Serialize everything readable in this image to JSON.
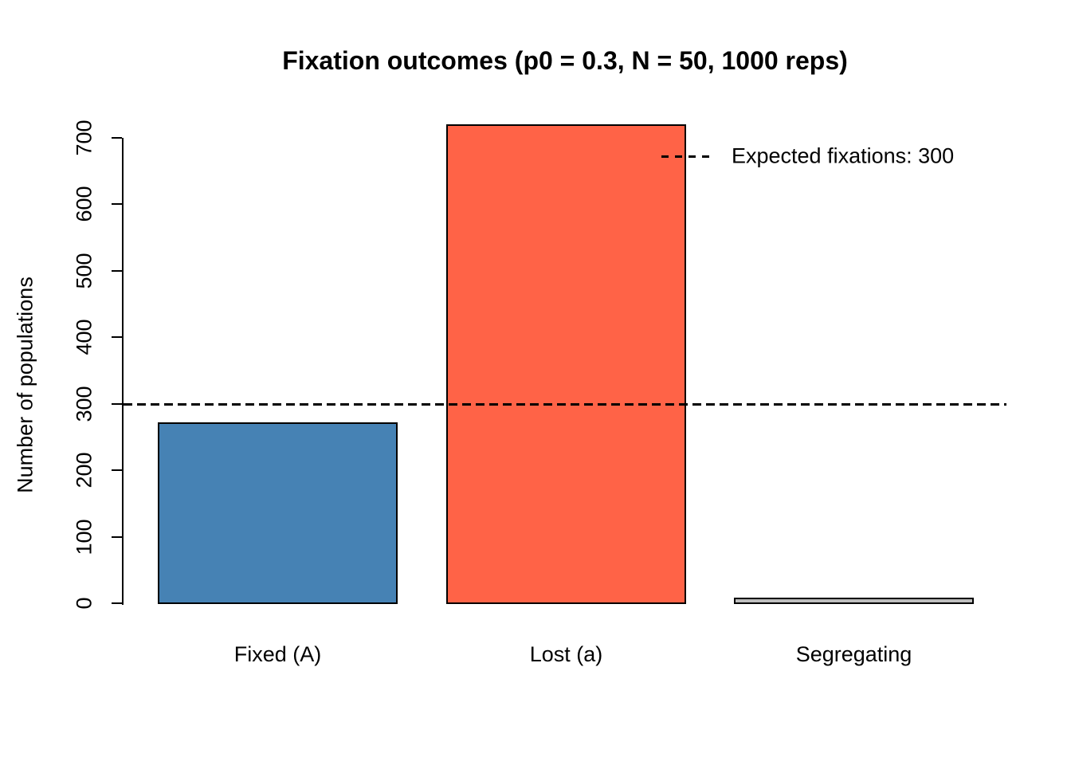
{
  "chart_data": {
    "type": "bar",
    "title": "Fixation outcomes (p0 = 0.3, N = 50, 1000 reps)",
    "categories": [
      "Fixed (A)",
      "Lost (a)",
      "Segregating"
    ],
    "values": [
      272,
      720,
      8
    ],
    "bar_colors": [
      "#4682B4",
      "#FF6347",
      "#BEBEBE"
    ],
    "bar_border_color": "#000000",
    "xlabel": "",
    "ylabel": "Number of populations",
    "ylim": [
      0,
      700
    ],
    "yticks": [
      0,
      100,
      200,
      300,
      400,
      500,
      600,
      700
    ],
    "grid": false,
    "background": "#FFFFFF",
    "reference_line": {
      "value": 300,
      "style": "dashed",
      "color": "#000000"
    },
    "legend": {
      "position": "top-right",
      "entries": [
        {
          "label": "Expected fixations: 300",
          "line_style": "dashed"
        }
      ]
    }
  }
}
